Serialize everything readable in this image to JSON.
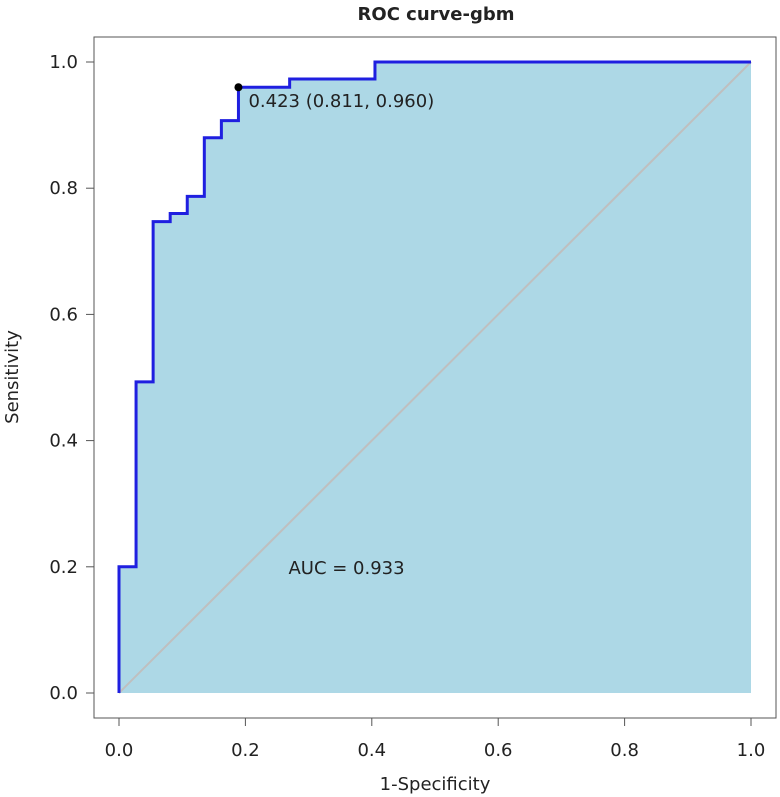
{
  "chart_data": {
    "type": "line",
    "title": "ROC curve-gbm",
    "xlabel": "1-Specificity",
    "ylabel": "Sensitivity",
    "xlim": [
      0,
      1
    ],
    "ylim": [
      0,
      1
    ],
    "x_ticks": [
      "0.0",
      "0.2",
      "0.4",
      "0.6",
      "0.8",
      "1.0"
    ],
    "y_ticks": [
      "0.0",
      "0.2",
      "0.4",
      "0.6",
      "0.8",
      "1.0"
    ],
    "grid": false,
    "series": [
      {
        "x": [
          0,
          0,
          0.027,
          0.027,
          0.054,
          0.054,
          0.081,
          0.081,
          0.108,
          0.108,
          0.135,
          0.135,
          0.162,
          0.162,
          0.189,
          0.189,
          0.27,
          0.27,
          0.405,
          0.405,
          1.0
        ],
        "y": [
          0,
          0.2,
          0.2,
          0.493,
          0.493,
          0.747,
          0.747,
          0.76,
          0.76,
          0.787,
          0.787,
          0.88,
          0.88,
          0.907,
          0.907,
          0.96,
          0.96,
          0.973,
          0.973,
          1.0,
          1.0
        ]
      }
    ],
    "reference_line": {
      "x": [
        0,
        1
      ],
      "y": [
        0,
        1
      ]
    },
    "threshold_point": {
      "x": 0.189,
      "y": 0.96,
      "label": "0.423 (0.811, 0.960)"
    },
    "auc_label": "AUC = 0.933",
    "colors": {
      "curve": "#1f1fe0",
      "fill": "#add8e6",
      "reference": "#bfbfbf",
      "point": "#000000",
      "frame": "#555555"
    }
  }
}
